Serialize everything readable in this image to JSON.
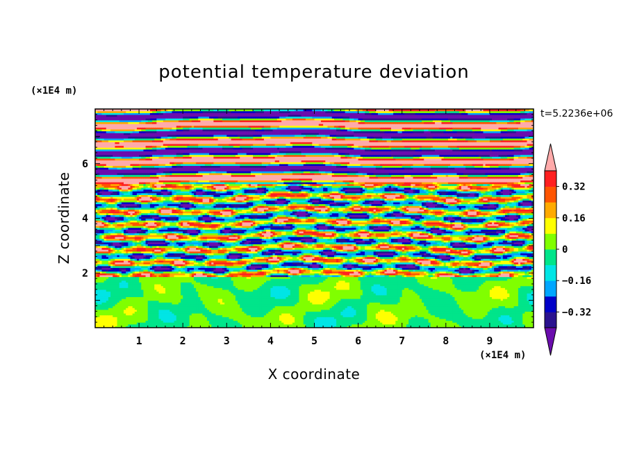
{
  "chart_data": {
    "type": "heatmap",
    "title": "potential temperature deviation",
    "xlabel": "X coordinate",
    "ylabel": "Z coordinate",
    "x_unit": "(×1E4 m)",
    "y_unit": "(×1E4 m)",
    "time_label": "t=5.2236e+06",
    "xlim": [
      0,
      10
    ],
    "ylim": [
      0,
      8
    ],
    "x_ticks": [
      "1",
      "2",
      "3",
      "4",
      "5",
      "6",
      "7",
      "8",
      "9"
    ],
    "y_ticks": [
      "2",
      "4",
      "6"
    ],
    "colorbar": {
      "labels": [
        "0.32",
        "0.16",
        "0",
        "−0.16",
        "−0.32"
      ],
      "label_values": [
        0.32,
        0.16,
        0,
        -0.16,
        -0.32
      ],
      "levels": [
        -0.4,
        -0.32,
        -0.24,
        -0.16,
        -0.08,
        0,
        0.08,
        0.16,
        0.24,
        0.32,
        0.4
      ],
      "colors": [
        "#6a0dad",
        "#2a128f",
        "#0000c8",
        "#00a6ff",
        "#00e5e5",
        "#00e58a",
        "#80ff00",
        "#ffff00",
        "#ffaa00",
        "#ff5500",
        "#ff2020",
        "#ffaaaa"
      ],
      "extend": "both"
    },
    "field_regions": [
      {
        "z_range": [
          0,
          1.9
        ],
        "pattern": "green mottled cells",
        "value_range": [
          -0.08,
          0.08
        ]
      },
      {
        "z_range": [
          1.9,
          5.3
        ],
        "pattern": "multicolor turbulent horizontal streaks",
        "value_range": [
          -0.4,
          0.4
        ]
      },
      {
        "z_range": [
          5.3,
          8
        ],
        "pattern": "alternating pink / purple horizontal bands",
        "value_range": [
          -0.4,
          0.4
        ]
      }
    ]
  }
}
